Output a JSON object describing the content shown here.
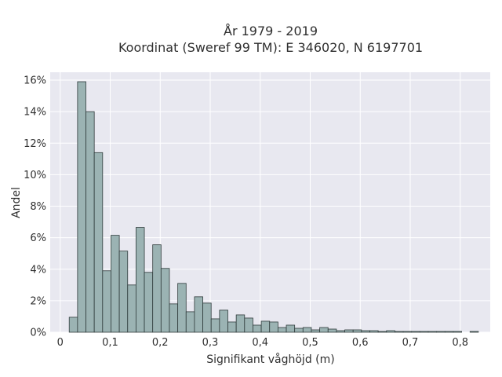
{
  "chart_data": {
    "type": "bar",
    "title": [
      "År 1979 - 2019",
      "Koordinat (Sweref 99 TM): E 346020, N 6197701"
    ],
    "xlabel": "Signifikant våghöjd (m)",
    "ylabel": "Andel",
    "xlim": [
      -0.02,
      0.86
    ],
    "ylim": [
      0,
      16.5
    ],
    "x_ticks": [
      0,
      0.1,
      0.2,
      0.3,
      0.4,
      0.5,
      0.6,
      0.7,
      0.8
    ],
    "x_tick_labels": [
      "0",
      "0,1",
      "0,2",
      "0,3",
      "0,4",
      "0,5",
      "0,6",
      "0,7",
      "0,8"
    ],
    "y_ticks": [
      0,
      2,
      4,
      6,
      8,
      10,
      12,
      14,
      16
    ],
    "y_tick_labels": [
      "0%",
      "2%",
      "4%",
      "6%",
      "8%",
      "10%",
      "12%",
      "14%",
      "16%"
    ],
    "grid": true,
    "bin_start": 0.018,
    "bin_width": 0.0167,
    "values": [
      0.95,
      15.9,
      14.0,
      11.4,
      3.9,
      6.15,
      5.15,
      3.0,
      6.65,
      3.8,
      5.55,
      4.05,
      1.8,
      3.1,
      1.3,
      2.25,
      1.85,
      0.85,
      1.4,
      0.65,
      1.1,
      0.9,
      0.45,
      0.7,
      0.65,
      0.3,
      0.45,
      0.25,
      0.3,
      0.15,
      0.3,
      0.2,
      0.1,
      0.15,
      0.15,
      0.1,
      0.1,
      0.05,
      0.1,
      0.05,
      0.05,
      0.05,
      0.05,
      0.05,
      0.05,
      0.05,
      0.05,
      0.0,
      0.05
    ],
    "colors": {
      "bar_fill": "#9bb3b3",
      "bar_edge": "#2f3b3b",
      "plot_bg": "#e8e8f0",
      "grid": "#ffffff"
    }
  }
}
